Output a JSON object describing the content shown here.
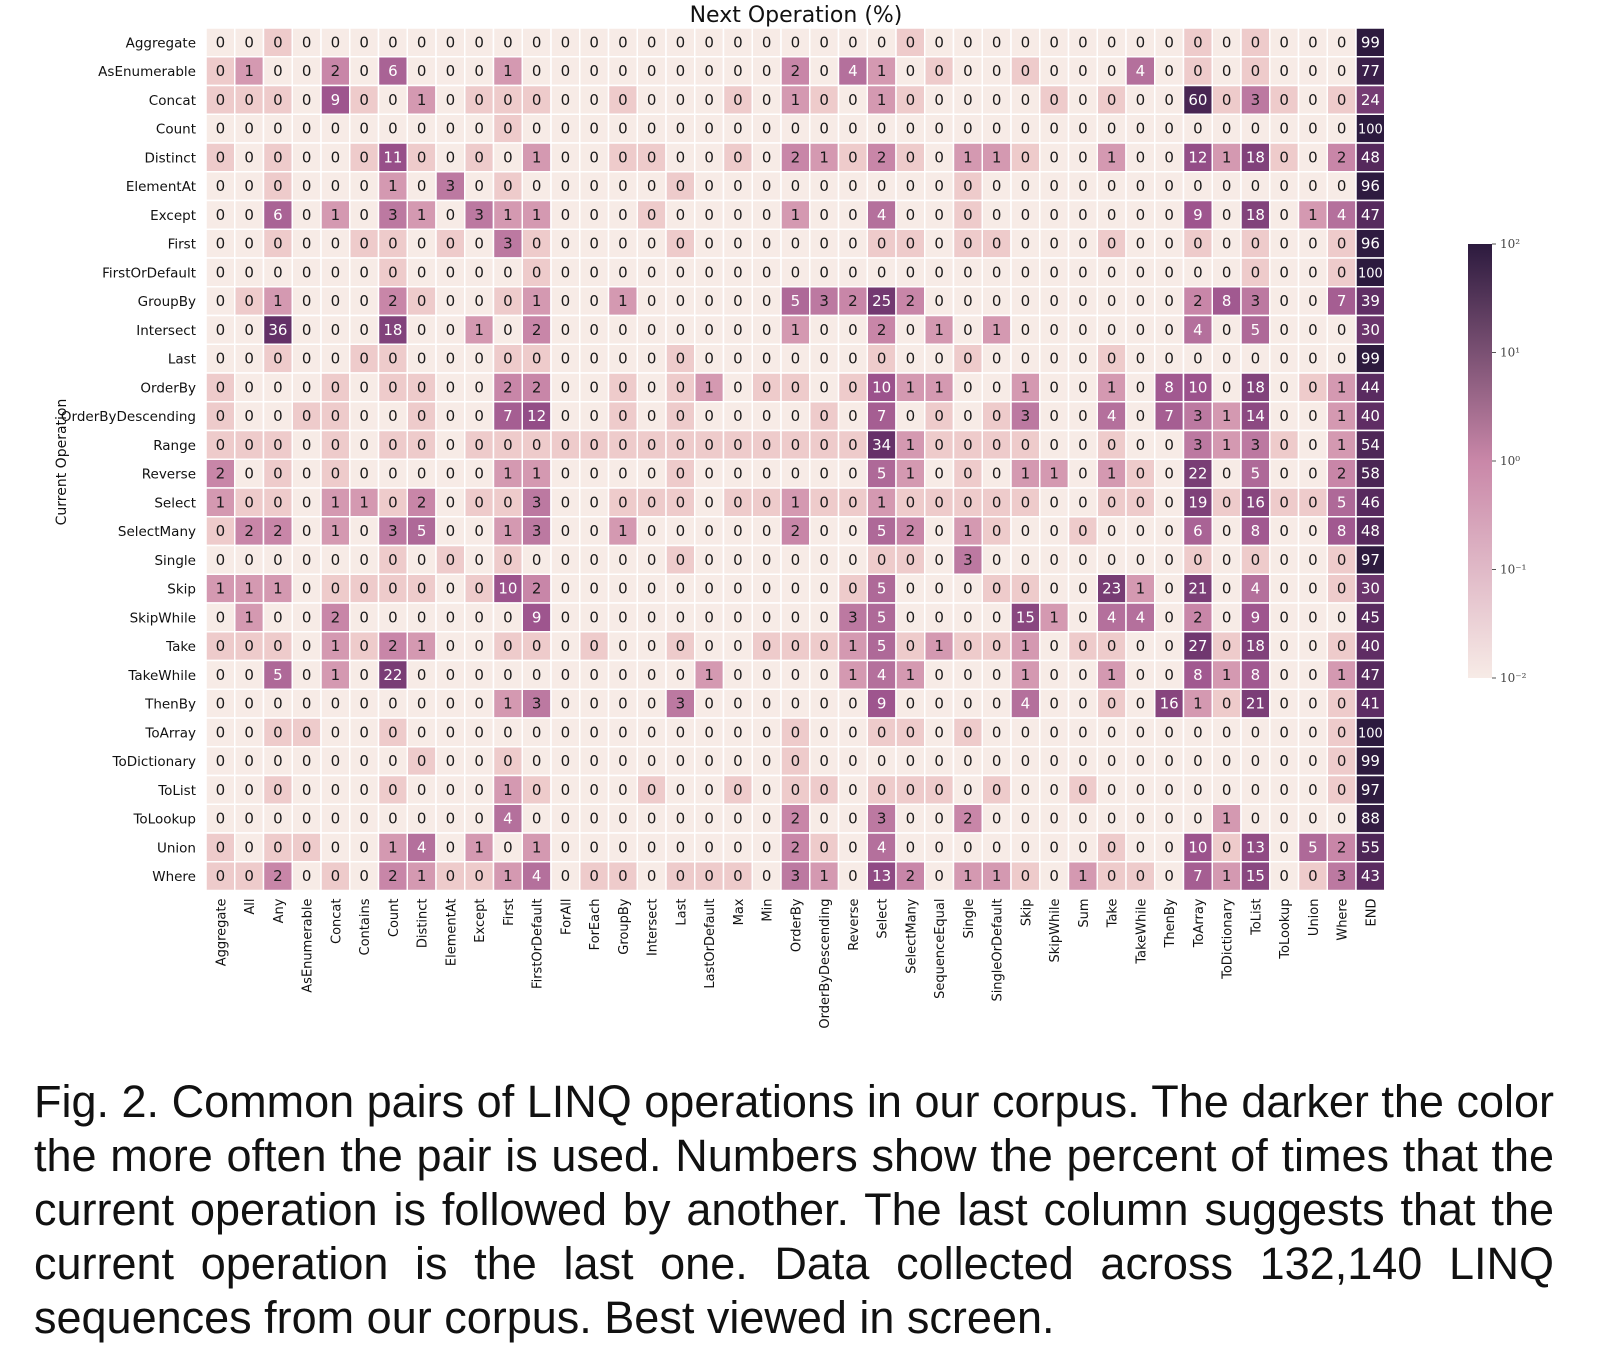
{
  "chart_data": {
    "type": "heatmap",
    "title": "Next Operation (%)",
    "xlabel": "Next Operation (%)",
    "ylabel": "Current Operation",
    "x_categories": [
      "Aggregate",
      "All",
      "Any",
      "AsEnumerable",
      "Concat",
      "Contains",
      "Count",
      "Distinct",
      "ElementAt",
      "Except",
      "First",
      "FirstOrDefault",
      "ForAll",
      "ForEach",
      "GroupBy",
      "Intersect",
      "Last",
      "LastOrDefault",
      "Max",
      "Min",
      "OrderBy",
      "OrderByDescending",
      "Reverse",
      "Select",
      "SelectMany",
      "SequenceEqual",
      "Single",
      "SingleOrDefault",
      "Skip",
      "SkipWhile",
      "Sum",
      "Take",
      "TakeWhile",
      "ThenBy",
      "ToArray",
      "ToDictionary",
      "ToList",
      "ToLookup",
      "Union",
      "Where",
      "END"
    ],
    "y_categories": [
      "Aggregate",
      "AsEnumerable",
      "Concat",
      "Count",
      "Distinct",
      "ElementAt",
      "Except",
      "First",
      "FirstOrDefault",
      "GroupBy",
      "Intersect",
      "Last",
      "OrderBy",
      "OrderByDescending",
      "Range",
      "Reverse",
      "Select",
      "SelectMany",
      "Single",
      "Skip",
      "SkipWhile",
      "Take",
      "TakeWhile",
      "ThenBy",
      "ToArray",
      "ToDictionary",
      "ToList",
      "ToLookup",
      "Union",
      "Where"
    ],
    "values": [
      [
        0,
        0,
        0.1,
        0,
        0,
        0,
        0,
        0,
        0,
        0,
        0,
        0,
        0,
        0,
        0,
        0,
        0,
        0,
        0,
        0,
        0,
        0,
        0,
        0,
        0.1,
        0,
        0,
        0,
        0,
        0,
        0,
        0,
        0,
        0,
        0.1,
        0,
        0.1,
        0,
        0,
        0,
        99
      ],
      [
        0.1,
        1,
        0,
        0,
        2,
        0,
        6,
        0,
        0,
        0,
        1,
        0,
        0,
        0,
        0,
        0,
        0,
        0,
        0,
        0,
        2,
        0,
        4,
        1,
        0,
        0.1,
        0,
        0,
        0.1,
        0,
        0,
        0,
        4,
        0,
        0.1,
        0,
        0.1,
        0,
        0,
        0,
        77
      ],
      [
        0.1,
        0.1,
        0.1,
        0,
        9,
        0.1,
        0,
        1,
        0,
        0.1,
        0.1,
        0.1,
        0,
        0,
        0.1,
        0,
        0,
        0,
        0.1,
        0,
        1,
        0.1,
        0,
        1,
        0.1,
        0,
        0,
        0,
        0,
        0.1,
        0,
        0.1,
        0,
        0,
        60,
        0.1,
        3,
        0.1,
        0,
        0.1,
        24
      ],
      [
        0,
        0,
        0,
        0,
        0,
        0,
        0,
        0,
        0,
        0,
        0.1,
        0,
        0,
        0,
        0,
        0,
        0,
        0,
        0,
        0,
        0,
        0,
        0,
        0,
        0,
        0,
        0,
        0,
        0,
        0,
        0,
        0,
        0,
        0,
        0,
        0,
        0,
        0,
        0,
        0,
        100
      ],
      [
        0.1,
        0,
        0.1,
        0,
        0,
        0.1,
        11,
        0.1,
        0,
        0.1,
        0,
        1,
        0,
        0,
        0.1,
        0.1,
        0,
        0,
        0.1,
        0,
        2,
        1,
        0.1,
        2,
        0.1,
        0,
        1,
        1,
        0.1,
        0,
        0,
        1,
        0,
        0,
        12,
        1,
        18,
        0.1,
        0,
        2,
        48
      ],
      [
        0,
        0,
        0.1,
        0,
        0,
        0,
        1,
        0,
        3,
        0,
        0.1,
        0,
        0,
        0,
        0,
        0,
        0.1,
        0,
        0,
        0,
        0,
        0,
        0,
        0,
        0,
        0,
        0.1,
        0,
        0,
        0,
        0,
        0,
        0,
        0,
        0,
        0,
        0,
        0,
        0,
        0,
        96
      ],
      [
        0,
        0,
        6,
        0,
        1,
        0,
        3,
        1,
        0,
        3,
        1,
        1,
        0,
        0,
        0,
        0.1,
        0,
        0,
        0,
        0,
        1,
        0,
        0,
        4,
        0,
        0,
        0.1,
        0,
        0,
        0,
        0,
        0,
        0,
        0,
        9,
        0,
        18,
        0,
        1,
        4,
        47
      ],
      [
        0,
        0,
        0.1,
        0,
        0,
        0.1,
        0.1,
        0,
        0.1,
        0,
        3,
        0.1,
        0,
        0,
        0,
        0,
        0.1,
        0,
        0,
        0,
        0,
        0,
        0,
        0.1,
        0.1,
        0,
        0.1,
        0.1,
        0,
        0,
        0,
        0.1,
        0,
        0,
        0.1,
        0,
        0.1,
        0,
        0,
        0.1,
        96
      ],
      [
        0,
        0,
        0,
        0,
        0,
        0,
        0.1,
        0,
        0,
        0,
        0,
        0.1,
        0,
        0,
        0,
        0,
        0,
        0,
        0,
        0,
        0,
        0,
        0,
        0,
        0,
        0,
        0,
        0,
        0,
        0,
        0,
        0,
        0,
        0,
        0,
        0,
        0.1,
        0,
        0,
        0.1,
        100
      ],
      [
        0,
        0.1,
        1,
        0,
        0,
        0,
        2,
        0.1,
        0,
        0,
        0.1,
        1,
        0,
        0,
        1,
        0,
        0,
        0,
        0,
        0,
        5,
        3,
        2,
        25,
        2,
        0,
        0,
        0,
        0,
        0,
        0,
        0,
        0,
        0,
        2,
        8,
        3,
        0,
        0,
        7,
        39
      ],
      [
        0,
        0,
        36,
        0,
        0,
        0,
        18,
        0,
        0,
        1,
        0,
        2,
        0,
        0,
        0,
        0,
        0,
        0,
        0,
        0,
        1,
        0,
        0,
        2,
        0,
        1,
        0,
        1,
        0,
        0,
        0,
        0,
        0,
        0,
        4,
        0,
        5,
        0,
        0,
        0,
        30
      ],
      [
        0,
        0,
        0.1,
        0,
        0,
        0.1,
        0.1,
        0,
        0,
        0,
        0.1,
        0.1,
        0,
        0,
        0,
        0,
        0.1,
        0,
        0,
        0,
        0,
        0,
        0,
        0.1,
        0,
        0,
        0.1,
        0,
        0,
        0,
        0,
        0.1,
        0,
        0,
        0,
        0,
        0,
        0,
        0,
        0,
        99
      ],
      [
        0.1,
        0,
        0,
        0,
        0.1,
        0,
        0.1,
        0.1,
        0,
        0,
        2,
        2,
        0,
        0,
        0.1,
        0,
        0.1,
        1,
        0,
        0.1,
        0.1,
        0,
        0.1,
        10,
        1,
        1,
        0,
        0,
        1,
        0,
        0,
        1,
        0,
        8,
        10,
        0,
        18,
        0,
        0.1,
        1,
        44
      ],
      [
        0.1,
        0,
        0,
        0.1,
        0.1,
        0,
        0,
        0.1,
        0,
        0,
        7,
        12,
        0,
        0,
        0.1,
        0,
        0.1,
        0,
        0,
        0,
        0,
        0.1,
        0,
        7,
        0,
        0.1,
        0,
        0.1,
        3,
        0,
        0,
        4,
        0,
        7,
        3,
        1,
        14,
        0,
        0,
        1,
        40
      ],
      [
        0.1,
        0.1,
        0.1,
        0,
        0.1,
        0,
        0.1,
        0.1,
        0,
        0.1,
        0.1,
        0.1,
        0.1,
        0.1,
        0.1,
        0.1,
        0.1,
        0.1,
        0.1,
        0.1,
        0.1,
        0.1,
        0.1,
        34,
        1,
        0.1,
        0.1,
        0.1,
        0.1,
        0,
        0,
        0.1,
        0,
        0,
        3,
        1,
        3,
        0.1,
        0,
        1,
        54
      ],
      [
        2,
        0,
        0.1,
        0,
        0.1,
        0,
        0,
        0,
        0,
        0,
        1,
        1,
        0,
        0,
        0,
        0,
        0.1,
        0,
        0,
        0,
        0,
        0,
        0,
        5,
        1,
        0,
        0.1,
        0,
        1,
        1,
        0,
        1,
        0.1,
        0,
        22,
        0,
        5,
        0,
        0,
        2,
        58
      ],
      [
        1,
        0.1,
        0.1,
        0,
        1,
        1,
        0.1,
        2,
        0,
        0.1,
        0.1,
        3,
        0,
        0,
        0.1,
        0.1,
        0.1,
        0,
        0.1,
        0.1,
        1,
        0.1,
        0.1,
        1,
        0.1,
        0.1,
        0.1,
        0.1,
        0.1,
        0,
        0,
        0.1,
        0.1,
        0,
        19,
        0.1,
        16,
        0.1,
        0.1,
        5,
        46
      ],
      [
        0.1,
        2,
        2,
        0,
        1,
        0,
        3,
        5,
        0,
        0,
        1,
        3,
        0,
        0,
        1,
        0,
        0,
        0,
        0,
        0,
        2,
        0,
        0,
        5,
        2,
        0,
        1,
        0.1,
        0,
        0,
        0.1,
        0,
        0,
        0,
        6,
        0,
        8,
        0,
        0,
        8,
        48
      ],
      [
        0,
        0,
        0,
        0,
        0,
        0,
        0.1,
        0,
        0.1,
        0,
        0.1,
        0,
        0,
        0,
        0,
        0,
        0.1,
        0,
        0,
        0,
        0,
        0,
        0,
        0.1,
        0.1,
        0,
        3,
        0,
        0,
        0,
        0,
        0,
        0,
        0,
        0.1,
        0,
        0.1,
        0,
        0,
        0.1,
        97
      ],
      [
        1,
        1,
        1,
        0,
        0.1,
        0.1,
        0.1,
        0.1,
        0,
        0.1,
        10,
        2,
        0,
        0,
        0,
        0,
        0,
        0,
        0,
        0,
        0,
        0,
        0.1,
        5,
        0,
        0,
        0,
        0.1,
        0.1,
        0,
        0,
        23,
        1,
        0,
        21,
        0,
        4,
        0,
        0,
        0.1,
        30
      ],
      [
        0,
        1,
        0,
        0,
        2,
        0,
        0,
        0,
        0,
        0,
        0,
        9,
        0,
        0,
        0,
        0,
        0,
        0,
        0,
        0,
        0,
        0,
        3,
        5,
        0,
        0,
        0,
        0,
        15,
        1,
        0,
        4,
        4,
        0,
        2,
        0,
        9,
        0,
        0,
        0,
        45
      ],
      [
        0.1,
        0.1,
        0.1,
        0,
        1,
        0.1,
        2,
        1,
        0,
        0,
        0.1,
        0.1,
        0,
        0.1,
        0,
        0,
        0.1,
        0,
        0,
        0.1,
        0.1,
        0.1,
        1,
        5,
        0.1,
        1,
        0.1,
        0.1,
        1,
        0,
        0.1,
        0.1,
        0,
        0,
        27,
        0.1,
        18,
        0,
        0,
        0.1,
        40
      ],
      [
        0,
        0,
        5,
        0,
        1,
        0,
        22,
        0,
        0,
        0,
        0,
        0,
        0,
        0,
        0,
        0,
        0,
        1,
        0,
        0,
        0,
        0,
        1,
        4,
        1,
        0,
        0,
        0,
        1,
        0,
        0,
        1,
        0,
        0,
        8,
        1,
        8,
        0,
        0,
        1,
        47
      ],
      [
        0,
        0,
        0,
        0,
        0,
        0,
        0,
        0,
        0,
        0,
        1,
        3,
        0,
        0,
        0,
        0,
        3,
        0,
        0,
        0,
        0,
        0,
        0,
        9,
        0,
        0,
        0,
        0,
        4,
        0,
        0,
        0.1,
        0,
        16,
        1,
        0.1,
        21,
        0,
        0,
        0.1,
        41
      ],
      [
        0,
        0,
        0.1,
        0.1,
        0,
        0,
        0.1,
        0,
        0,
        0,
        0,
        0,
        0,
        0,
        0,
        0,
        0,
        0,
        0,
        0,
        0.1,
        0,
        0,
        0.1,
        0.1,
        0,
        0.1,
        0,
        0,
        0,
        0,
        0,
        0,
        0,
        0,
        0,
        0,
        0,
        0,
        0.1,
        100
      ],
      [
        0,
        0,
        0,
        0,
        0,
        0,
        0,
        0.1,
        0,
        0,
        0.1,
        0,
        0,
        0,
        0,
        0,
        0,
        0,
        0,
        0,
        0.1,
        0,
        0,
        0,
        0,
        0,
        0,
        0,
        0,
        0,
        0,
        0,
        0,
        0,
        0,
        0,
        0,
        0,
        0,
        0.1,
        99
      ],
      [
        0,
        0,
        0.1,
        0,
        0,
        0,
        0.1,
        0,
        0,
        0,
        1,
        0.1,
        0,
        0,
        0,
        0.1,
        0,
        0,
        0.1,
        0,
        0.1,
        0.1,
        0,
        0.1,
        0.1,
        0.1,
        0,
        0.1,
        0,
        0,
        0.1,
        0,
        0,
        0,
        0,
        0,
        0,
        0,
        0,
        0.1,
        97
      ],
      [
        0,
        0,
        0,
        0,
        0,
        0,
        0,
        0,
        0,
        0,
        4,
        0,
        0,
        0,
        0,
        0,
        0,
        0,
        0,
        0,
        2,
        0,
        0,
        3,
        0,
        0,
        2,
        0,
        0,
        0,
        0,
        0,
        0,
        0,
        0,
        1,
        0,
        0,
        0,
        0,
        88
      ],
      [
        0.1,
        0,
        0.1,
        0.1,
        0,
        0,
        1,
        4,
        0,
        1,
        0,
        1,
        0,
        0,
        0,
        0,
        0,
        0,
        0,
        0,
        2,
        0.1,
        0,
        4,
        0,
        0,
        0,
        0,
        0,
        0,
        0,
        0.1,
        0,
        0,
        10,
        0.1,
        13,
        0,
        5,
        2,
        55
      ],
      [
        0.1,
        0.1,
        2,
        0,
        0.1,
        0,
        2,
        1,
        0.1,
        0.1,
        1,
        4,
        0,
        0.1,
        0.1,
        0,
        0.1,
        0.1,
        0.1,
        0,
        3,
        1,
        0,
        13,
        2,
        0,
        1,
        1,
        0.1,
        0,
        1,
        0.1,
        0.1,
        0,
        7,
        1,
        15,
        0,
        0.1,
        3,
        43
      ]
    ],
    "colorbar": {
      "scale": "log",
      "range": [
        0.01,
        100
      ],
      "tick_labels": [
        "10²",
        "10¹",
        "10⁰",
        "10⁻¹",
        "10⁻²"
      ]
    },
    "colors": {
      "low": "#f7ebe6",
      "mid": "#c987a8",
      "high": "#2c1a3e",
      "grid": "#ffffff"
    }
  },
  "caption": "Fig. 2. Common pairs of LINQ operations in our corpus. The darker the color the more often the pair is used. Numbers show the percent of times that the current operation is followed by another. The last column suggests that the current operation is the last one. Data collected across 132,140 LINQ sequences from our corpus. Best viewed in screen."
}
